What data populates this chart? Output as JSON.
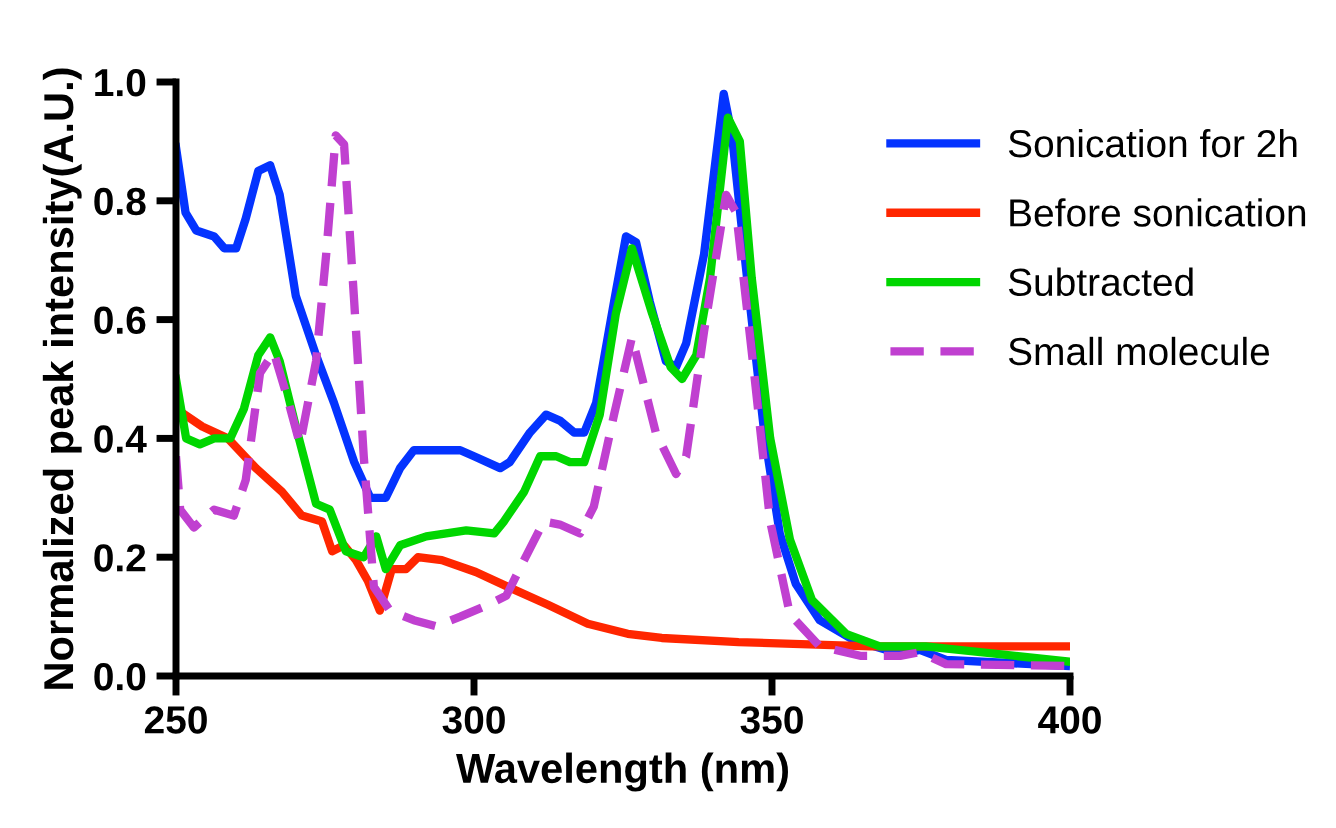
{
  "chart_data": {
    "type": "line",
    "xlabel": "Wavelength (nm)",
    "ylabel": "Normalized peak intensity(A.U.)",
    "xlim": [
      250,
      400
    ],
    "ylim": [
      0,
      1.0
    ],
    "xticks": [
      250,
      300,
      350,
      400
    ],
    "yticks": [
      {
        "value": 0,
        "label": "0.0"
      },
      {
        "value": 0.2,
        "label": "0.2"
      },
      {
        "value": 0.4,
        "label": "0.4"
      },
      {
        "value": 0.6,
        "label": "0.6"
      },
      {
        "value": 0.8,
        "label": "0.8"
      },
      {
        "value": 1.0,
        "label": "1.0"
      }
    ],
    "grid": false,
    "legend": "right",
    "marker": "none",
    "series": [
      {
        "name": "Sonication for 2h",
        "color": "#0433ff",
        "line_style": "solid",
        "x": [
          250,
          251.6,
          253.4,
          256.4,
          258.1,
          260.1,
          261.7,
          263.8,
          265.8,
          267.4,
          270.1,
          273.5,
          276.5,
          279.9,
          282.6,
          285.2,
          287.6,
          289.9,
          297.7,
          300,
          304.4,
          306,
          309.4,
          312.1,
          314.4,
          316.8,
          318.5,
          320.5,
          323.5,
          325.5,
          327.2,
          329.5,
          332.2,
          333.9,
          335.6,
          338.6,
          341.9,
          343.3,
          345.6,
          348.7,
          351.3,
          354,
          358,
          363.8,
          371.5,
          374.8,
          379.2,
          399.3
        ],
        "values": [
          0.89,
          0.78,
          0.75,
          0.74,
          0.72,
          0.72,
          0.77,
          0.85,
          0.86,
          0.81,
          0.64,
          0.54,
          0.46,
          0.36,
          0.3,
          0.3,
          0.35,
          0.38,
          0.38,
          0.37,
          0.35,
          0.36,
          0.41,
          0.44,
          0.43,
          0.41,
          0.41,
          0.46,
          0.63,
          0.74,
          0.73,
          0.63,
          0.53,
          0.52,
          0.56,
          0.71,
          0.98,
          0.91,
          0.69,
          0.41,
          0.24,
          0.155,
          0.094,
          0.06,
          0.037,
          0.044,
          0.027,
          0.017
        ]
      },
      {
        "name": "Before sonication",
        "color": "#ff2600",
        "line_style": "solid",
        "x": [
          250,
          254.4,
          258.7,
          263.4,
          267.8,
          271.1,
          274.5,
          276.2,
          278.2,
          280.2,
          282.2,
          284.2,
          286.2,
          288.6,
          290.6,
          294.6,
          300.3,
          305.7,
          312.4,
          319.1,
          325.8,
          331.5,
          344.4,
          366.6,
          399.6
        ],
        "values": [
          0.45,
          0.42,
          0.4,
          0.35,
          0.31,
          0.27,
          0.26,
          0.21,
          0.22,
          0.195,
          0.16,
          0.11,
          0.18,
          0.18,
          0.2,
          0.195,
          0.175,
          0.15,
          0.12,
          0.088,
          0.071,
          0.064,
          0.057,
          0.05,
          0.05
        ]
      },
      {
        "name": "Subtracted",
        "color": "#00d600",
        "line_style": "solid",
        "x": [
          250,
          251.7,
          254,
          256.4,
          259.1,
          261.4,
          263.8,
          265.8,
          267.4,
          270.1,
          273.5,
          275.8,
          278.5,
          281.5,
          283.6,
          285.2,
          287.6,
          292,
          298.7,
          303.4,
          305,
          308.4,
          311.1,
          313.8,
          316.1,
          318.5,
          321.1,
          323.8,
          326.5,
          329.9,
          333,
          334.9,
          337.3,
          339.6,
          342.6,
          344.6,
          346.6,
          349.7,
          353,
          356.7,
          362.4,
          368.1,
          375.8,
          400
        ],
        "values": [
          0.5,
          0.4,
          0.39,
          0.4,
          0.4,
          0.45,
          0.54,
          0.57,
          0.53,
          0.42,
          0.29,
          0.28,
          0.21,
          0.2,
          0.235,
          0.18,
          0.22,
          0.235,
          0.245,
          0.24,
          0.26,
          0.31,
          0.37,
          0.37,
          0.36,
          0.36,
          0.44,
          0.61,
          0.72,
          0.61,
          0.52,
          0.5,
          0.54,
          0.67,
          0.94,
          0.9,
          0.67,
          0.4,
          0.23,
          0.128,
          0.071,
          0.05,
          0.05,
          0.024
        ]
      },
      {
        "name": "Small molecule",
        "color": "#c040d0",
        "line_style": "dashed",
        "x": [
          250,
          250.7,
          253,
          256.4,
          259.7,
          261.7,
          264.1,
          266.4,
          268.5,
          270.8,
          273.5,
          275.2,
          276.8,
          278.2,
          279.9,
          281.5,
          283.2,
          285.9,
          289.9,
          293.6,
          297.7,
          302,
          305.4,
          308.4,
          311.7,
          314.4,
          317.8,
          320.1,
          323.5,
          326.5,
          330.5,
          333.9,
          335.6,
          338.6,
          342.3,
          344,
          347,
          349.7,
          353,
          358,
          364.8,
          371.5,
          374.8,
          379.2,
          399.3
        ],
        "values": [
          0.37,
          0.28,
          0.25,
          0.28,
          0.27,
          0.33,
          0.51,
          0.545,
          0.475,
          0.39,
          0.53,
          0.71,
          0.91,
          0.895,
          0.63,
          0.37,
          0.15,
          0.11,
          0.094,
          0.084,
          0.1,
          0.118,
          0.135,
          0.195,
          0.26,
          0.255,
          0.24,
          0.285,
          0.44,
          0.57,
          0.41,
          0.34,
          0.37,
          0.58,
          0.81,
          0.78,
          0.51,
          0.26,
          0.104,
          0.05,
          0.034,
          0.034,
          0.04,
          0.02,
          0.017
        ]
      }
    ]
  }
}
